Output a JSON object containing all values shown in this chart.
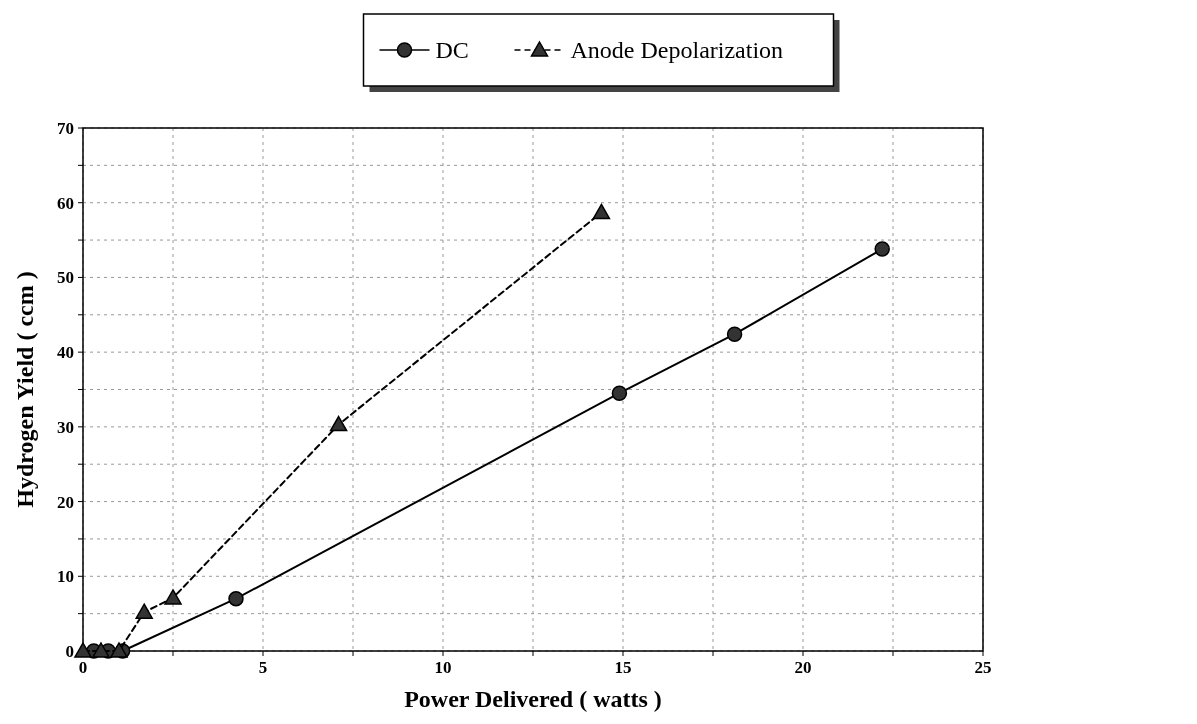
{
  "chart_data": {
    "type": "line",
    "xlabel": "Power Delivered ( watts )",
    "ylabel": "Hydrogen Yield ( ccm )",
    "xlim": [
      0,
      25
    ],
    "xticks": [
      0,
      {
        "value": 2.5,
        "label": null
      },
      5,
      {
        "value": 7.5,
        "label": null
      },
      10,
      {
        "value": 12.5,
        "label": null
      },
      15,
      {
        "value": 17.5,
        "label": null
      },
      20,
      {
        "value": 22.5,
        "label": null
      },
      25
    ],
    "ylim": [
      0,
      70
    ],
    "yticks": [
      0,
      {
        "value": 5,
        "label": null
      },
      10,
      {
        "value": 15,
        "label": null
      },
      20,
      {
        "value": 25,
        "label": null
      },
      30,
      {
        "value": 35,
        "label": null
      },
      40,
      {
        "value": 45,
        "label": null
      },
      50,
      {
        "value": 55,
        "label": null
      },
      60,
      {
        "value": 65,
        "label": null
      },
      70
    ],
    "grid": true,
    "legend": "top",
    "series": [
      {
        "name": "DC",
        "color": "#000000",
        "marker": "circle",
        "line_style": "solid",
        "x": [
          0.3,
          0.7,
          1.1,
          4.25,
          14.9,
          18.1,
          22.2
        ],
        "values": [
          0,
          0,
          0,
          7,
          34.5,
          42.4,
          53.8
        ]
      },
      {
        "name": "Anode Depolarization",
        "color": "#000000",
        "marker": "triangle",
        "line_style": "dashed",
        "x": [
          0,
          0.5,
          1.0,
          1.7,
          2.5,
          7.1,
          14.4
        ],
        "values": [
          0,
          0,
          0,
          5.2,
          7.1,
          30.3,
          58.7
        ]
      }
    ]
  }
}
